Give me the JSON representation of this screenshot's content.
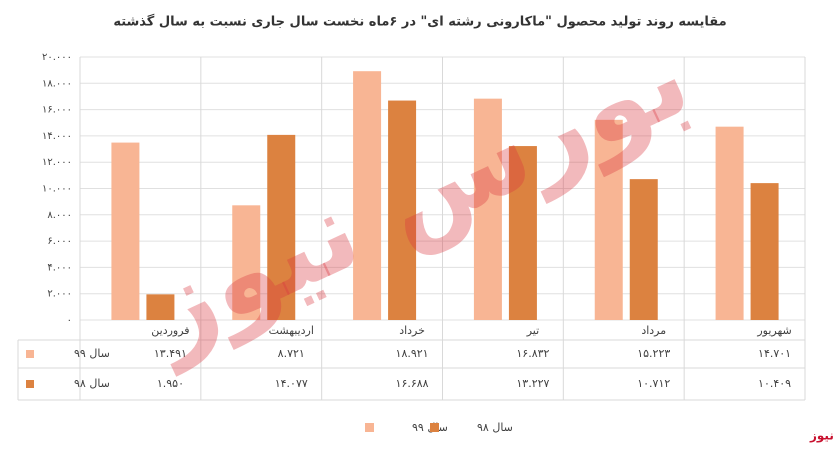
{
  "chart_data": {
    "type": "bar",
    "title": "مقایسه روند تولید محصول \"ماکارونی رشته ای\" در ۶ماه نخست سال جاری نسبت به سال گذشته",
    "categories": [
      "فروردین",
      "اردیبهشت",
      "خرداد",
      "تیر",
      "مرداد",
      "شهریور"
    ],
    "series": [
      {
        "name": "سال ۹۹",
        "color": "#f8b594",
        "values": [
          13491,
          8721,
          18921,
          16832,
          15223,
          14701
        ],
        "value_labels": [
          "۱۳.۴۹۱",
          "۸.۷۲۱",
          "۱۸.۹۲۱",
          "۱۶.۸۳۲",
          "۱۵.۲۲۳",
          "۱۴.۷۰۱"
        ]
      },
      {
        "name": "سال ۹۸",
        "color": "#dc8240",
        "values": [
          1950,
          14077,
          16688,
          13227,
          10712,
          10409
        ],
        "value_labels": [
          "۱.۹۵۰",
          "۱۴.۰۷۷",
          "۱۶.۶۸۸",
          "۱۳.۲۲۷",
          "۱۰.۷۱۲",
          "۱۰.۴۰۹"
        ]
      }
    ],
    "ylim": [
      0,
      20000
    ],
    "yticks": [
      {
        "value": 0,
        "label": "۰"
      },
      {
        "value": 2000,
        "label": "۲.۰۰۰"
      },
      {
        "value": 4000,
        "label": "۴.۰۰۰"
      },
      {
        "value": 6000,
        "label": "۶.۰۰۰"
      },
      {
        "value": 8000,
        "label": "۸.۰۰۰"
      },
      {
        "value": 10000,
        "label": "۱۰.۰۰۰"
      },
      {
        "value": 12000,
        "label": "۱۲.۰۰۰"
      },
      {
        "value": 14000,
        "label": "۱۴.۰۰۰"
      },
      {
        "value": 16000,
        "label": "۱۶.۰۰۰"
      },
      {
        "value": 18000,
        "label": "۱۸.۰۰۰"
      },
      {
        "value": 20000,
        "label": "۲۰.۰۰۰"
      }
    ],
    "grid": true,
    "watermark": "بورس نیوز",
    "source": "بورس نیوز"
  }
}
